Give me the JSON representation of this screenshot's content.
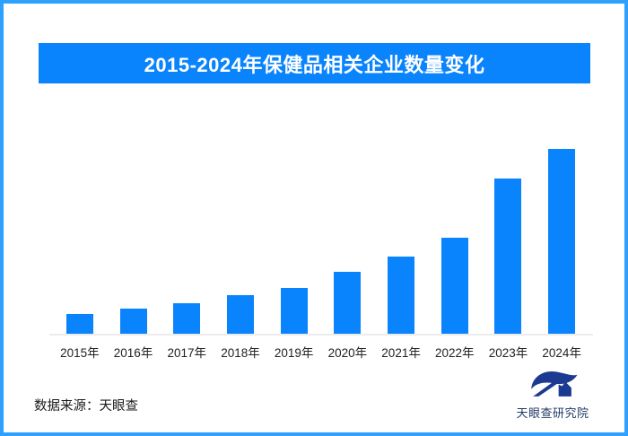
{
  "title": "2015-2024年保健品相关企业数量变化",
  "chart_data": {
    "type": "bar",
    "title": "2015-2024年保健品相关企业数量变化",
    "categories": [
      "2015年",
      "2016年",
      "2017年",
      "2018年",
      "2019年",
      "2020年",
      "2021年",
      "2022年",
      "2023年",
      "2024年"
    ],
    "values": [
      11.1,
      14.0,
      16.9,
      21.3,
      25.1,
      33.8,
      42.0,
      52.2,
      84.1,
      100
    ],
    "values_note": "相对数值（图中未显示数值轴），以2024年柱高=100估算",
    "xlabel": "",
    "ylabel": "",
    "grid": false,
    "legend": false,
    "bar_color": "#0a84fc",
    "axis_line_color": "#ececec"
  },
  "footer": {
    "source_label": "数据来源：天眼查",
    "brand_name": "天眼查研究院"
  },
  "colors": {
    "banner_bg": "#0a84fc",
    "banner_text": "#ffffff",
    "frame_border": "#2ea1ff",
    "bar": "#0a84fc",
    "axis_line": "#ececec",
    "tick_text": "#222222",
    "logo_navy": "#1d3a92",
    "brand_text": "#223a68"
  }
}
